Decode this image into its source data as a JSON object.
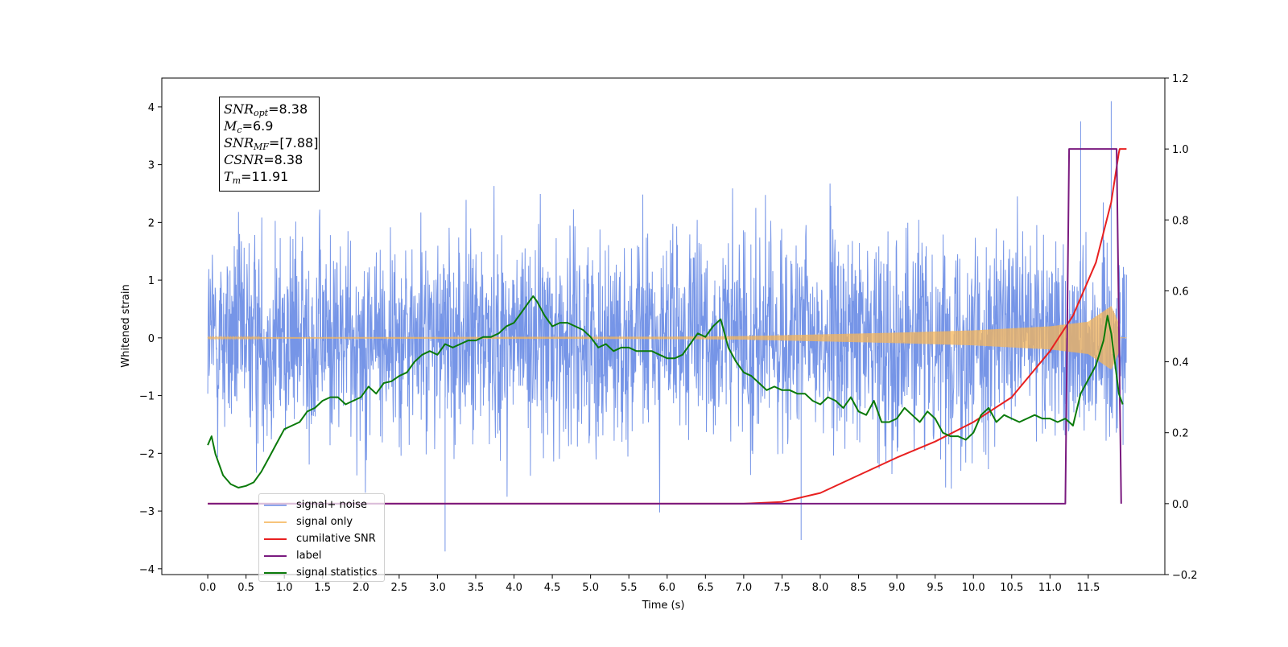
{
  "info_box": {
    "snr_opt_value": "8.38",
    "mc_value": "6.9",
    "snr_mf_value": "[7.88]",
    "csnr_value": "8.38",
    "tm_value": "11.91"
  },
  "chart_data": {
    "type": "line",
    "xlabel": "Time (s)",
    "ylabel": "Whitened strain",
    "y2label": "",
    "xlim": [
      -0.6,
      12.5
    ],
    "ylim": [
      -4.1,
      4.5
    ],
    "y2lim": [
      -0.2,
      1.2
    ],
    "x_ticks": [
      0.0,
      0.5,
      1.0,
      1.5,
      2.0,
      2.5,
      3.0,
      3.5,
      4.0,
      4.5,
      5.0,
      5.5,
      6.0,
      6.5,
      7.0,
      7.5,
      8.0,
      8.5,
      9.0,
      9.5,
      10.0,
      10.5,
      11.0,
      11.5
    ],
    "x_tick_labels": [
      "0.0",
      "0.5",
      "1.0",
      "1.5",
      "2.0",
      "2.5",
      "3.0",
      "3.5",
      "4.0",
      "4.5",
      "5.0",
      "5.5",
      "6.0",
      "6.5",
      "7.0",
      "7.5",
      "8.0",
      "8.5",
      "9.0",
      "9.5",
      "10.0",
      "10.5",
      "11.0",
      "11.5"
    ],
    "y_ticks": [
      -4,
      -3,
      -2,
      -1,
      0,
      1,
      2,
      3,
      4
    ],
    "y_tick_labels": [
      "−4",
      "−3",
      "−2",
      "−1",
      "0",
      "1",
      "2",
      "3",
      "4"
    ],
    "y2_ticks": [
      -0.2,
      0.0,
      0.2,
      0.4,
      0.6,
      0.8,
      1.0,
      1.2
    ],
    "y2_tick_labels": [
      "−0.2",
      "0.0",
      "0.2",
      "0.4",
      "0.6",
      "0.8",
      "1.0",
      "1.2"
    ],
    "legend_position": "lower-left",
    "series": [
      {
        "name": "signal+ noise",
        "axis": "left",
        "color": "#6f8fe6",
        "kind": "noisy-band",
        "x_range": [
          0.0,
          12.0
        ],
        "noise_std": 0.9,
        "note_peaks": [
          {
            "x": 3.1,
            "y": -3.7
          },
          {
            "x": 7.75,
            "y": -3.5
          },
          {
            "x": 11.4,
            "y": 3.75
          },
          {
            "x": 11.8,
            "y": 4.1
          }
        ]
      },
      {
        "name": "signal only",
        "axis": "left",
        "color": "#f5b55a",
        "kind": "chirp-envelope",
        "envelope": {
          "x": [
            0.0,
            6.0,
            7.0,
            8.0,
            9.0,
            10.0,
            11.0,
            11.5,
            11.8,
            11.9,
            11.91,
            12.0
          ],
          "y": [
            0.01,
            0.02,
            0.03,
            0.06,
            0.09,
            0.13,
            0.2,
            0.28,
            0.55,
            0.25,
            0.0,
            0.0
          ]
        }
      },
      {
        "name": "cumilative SNR",
        "axis": "right",
        "color": "#e82020",
        "x": [
          0.0,
          7.0,
          7.5,
          8.0,
          8.5,
          9.0,
          9.5,
          10.0,
          10.5,
          11.0,
          11.3,
          11.6,
          11.8,
          11.9,
          11.91,
          12.0
        ],
        "y": [
          0.0,
          0.0,
          0.005,
          0.03,
          0.08,
          0.13,
          0.175,
          0.23,
          0.3,
          0.43,
          0.53,
          0.68,
          0.85,
          0.99,
          1.0,
          1.0
        ]
      },
      {
        "name": "label",
        "axis": "right",
        "color": "#7a1a7f",
        "x": [
          0.0,
          11.2,
          11.25,
          11.87,
          11.93
        ],
        "y": [
          0.0,
          0.0,
          1.0,
          1.0,
          0.0
        ]
      },
      {
        "name": "signal statistics",
        "axis": "right",
        "color": "#0a7a0a",
        "x": [
          0.0,
          0.05,
          0.1,
          0.2,
          0.3,
          0.4,
          0.5,
          0.6,
          0.7,
          0.8,
          0.9,
          1.0,
          1.1,
          1.2,
          1.3,
          1.4,
          1.5,
          1.6,
          1.7,
          1.8,
          1.9,
          2.0,
          2.1,
          2.2,
          2.3,
          2.4,
          2.5,
          2.6,
          2.7,
          2.8,
          2.9,
          3.0,
          3.1,
          3.2,
          3.3,
          3.4,
          3.5,
          3.6,
          3.7,
          3.8,
          3.9,
          4.0,
          4.1,
          4.2,
          4.25,
          4.3,
          4.4,
          4.5,
          4.6,
          4.7,
          4.8,
          4.9,
          5.0,
          5.1,
          5.2,
          5.3,
          5.4,
          5.5,
          5.6,
          5.7,
          5.8,
          5.9,
          6.0,
          6.1,
          6.2,
          6.3,
          6.4,
          6.5,
          6.6,
          6.7,
          6.8,
          6.9,
          7.0,
          7.1,
          7.2,
          7.3,
          7.4,
          7.5,
          7.6,
          7.7,
          7.8,
          7.9,
          8.0,
          8.1,
          8.2,
          8.3,
          8.4,
          8.5,
          8.6,
          8.7,
          8.8,
          8.9,
          9.0,
          9.1,
          9.2,
          9.3,
          9.4,
          9.5,
          9.6,
          9.7,
          9.8,
          9.9,
          10.0,
          10.1,
          10.2,
          10.3,
          10.4,
          10.5,
          10.6,
          10.7,
          10.8,
          10.9,
          11.0,
          11.1,
          11.2,
          11.3,
          11.4,
          11.5,
          11.6,
          11.7,
          11.75,
          11.8,
          11.9,
          11.95
        ],
        "y": [
          0.165,
          0.19,
          0.14,
          0.08,
          0.055,
          0.045,
          0.05,
          0.06,
          0.09,
          0.13,
          0.17,
          0.21,
          0.22,
          0.23,
          0.26,
          0.27,
          0.29,
          0.3,
          0.3,
          0.28,
          0.29,
          0.3,
          0.33,
          0.31,
          0.34,
          0.345,
          0.36,
          0.37,
          0.4,
          0.42,
          0.43,
          0.42,
          0.45,
          0.44,
          0.45,
          0.46,
          0.46,
          0.47,
          0.47,
          0.48,
          0.5,
          0.51,
          0.54,
          0.57,
          0.585,
          0.57,
          0.53,
          0.5,
          0.51,
          0.51,
          0.5,
          0.49,
          0.47,
          0.44,
          0.45,
          0.43,
          0.44,
          0.44,
          0.43,
          0.43,
          0.43,
          0.42,
          0.41,
          0.41,
          0.42,
          0.45,
          0.48,
          0.47,
          0.5,
          0.52,
          0.44,
          0.4,
          0.37,
          0.36,
          0.34,
          0.32,
          0.33,
          0.32,
          0.32,
          0.31,
          0.31,
          0.29,
          0.28,
          0.3,
          0.29,
          0.27,
          0.3,
          0.26,
          0.25,
          0.29,
          0.23,
          0.23,
          0.24,
          0.27,
          0.25,
          0.23,
          0.26,
          0.24,
          0.2,
          0.19,
          0.19,
          0.18,
          0.2,
          0.25,
          0.27,
          0.23,
          0.25,
          0.24,
          0.23,
          0.24,
          0.25,
          0.24,
          0.24,
          0.23,
          0.24,
          0.22,
          0.31,
          0.35,
          0.39,
          0.46,
          0.53,
          0.48,
          0.31,
          0.28
        ]
      }
    ]
  }
}
